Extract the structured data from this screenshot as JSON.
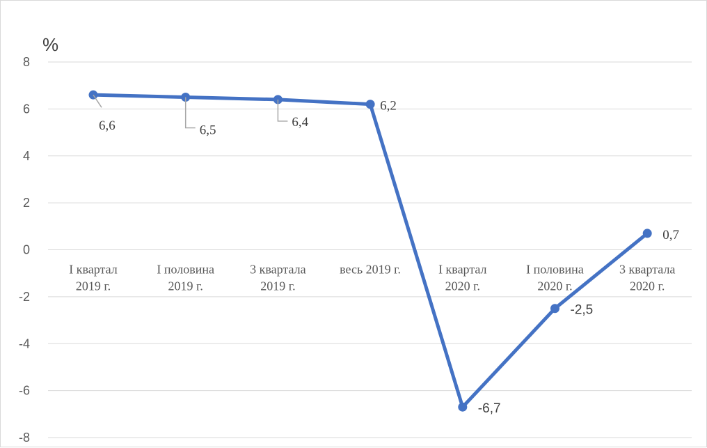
{
  "chart_data": {
    "type": "line",
    "title": "",
    "ylabel": "%",
    "xlabel": "",
    "ylim": [
      -8,
      8
    ],
    "yticks": [
      "8",
      "6",
      "4",
      "2",
      "0",
      "-2",
      "-4",
      "-6",
      "-8"
    ],
    "grid": true,
    "categories": [
      [
        "I квартал",
        "2019 г."
      ],
      [
        "I половина",
        "2019 г."
      ],
      [
        "3 квартала",
        "2019 г."
      ],
      [
        "весь 2019 г.",
        ""
      ],
      [
        "I квартал",
        "2020 г."
      ],
      [
        "I половина",
        "2020 г."
      ],
      [
        "3 квартала",
        "2020 г."
      ]
    ],
    "series": [
      {
        "color": "#4472c4",
        "values": [
          6.6,
          6.5,
          6.4,
          6.2,
          -6.7,
          -2.5,
          0.7
        ],
        "labels": [
          "6,6",
          "6,5",
          "6,4",
          "6,2",
          "-6,7",
          "-2,5",
          "0,7"
        ]
      }
    ],
    "colors": {
      "gridline": "#d9d9d9",
      "axis_text": "#595959",
      "line": "#4472c4",
      "leader": "#a6a6a6"
    }
  }
}
